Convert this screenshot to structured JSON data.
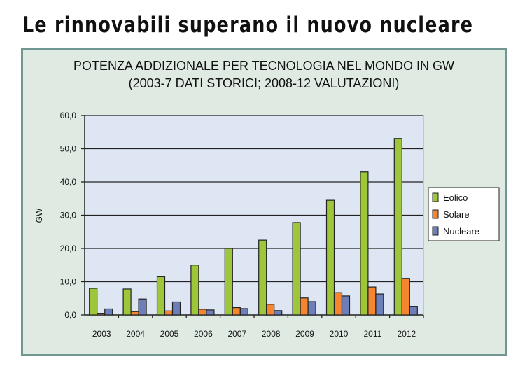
{
  "headline": "Le rinnovabili superano il nuovo nucleare",
  "chart_data": {
    "type": "bar",
    "title": "POTENZA ADDIZIONALE PER TECNOLOGIA NEL MONDO IN GW",
    "subtitle": "(2003-7 DATI STORICI; 2008-12 VALUTAZIONI)",
    "xlabel": "",
    "ylabel": "GW",
    "ylim": [
      0,
      60
    ],
    "yticks": [
      "0,0",
      "10,0",
      "20,0",
      "30,0",
      "40,0",
      "50,0",
      "60,0"
    ],
    "categories": [
      "2003",
      "2004",
      "2005",
      "2006",
      "2007",
      "2008",
      "2009",
      "2010",
      "2011",
      "2012"
    ],
    "series": [
      {
        "name": "Eolico",
        "color": "#9dc63b",
        "values": [
          8.0,
          7.8,
          11.5,
          15.0,
          20.0,
          22.5,
          27.8,
          34.5,
          43.0,
          53.1
        ]
      },
      {
        "name": "Solare",
        "color": "#f5852f",
        "values": [
          0.5,
          1.0,
          1.2,
          1.7,
          2.2,
          3.2,
          5.1,
          6.7,
          8.4,
          11.0
        ]
      },
      {
        "name": "Nucleare",
        "color": "#6d7fb8",
        "values": [
          1.8,
          4.8,
          3.9,
          1.5,
          1.9,
          1.3,
          4.0,
          5.7,
          6.3,
          2.6
        ]
      }
    ],
    "grid": true,
    "legend": "right"
  }
}
